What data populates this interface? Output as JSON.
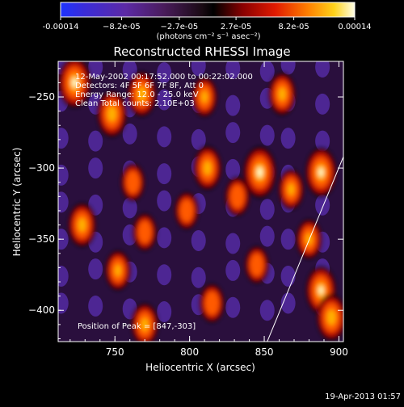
{
  "chart_data": {
    "type": "heatmap",
    "title": "Reconstructed RHESSI Image",
    "xlabel": "Heliocentric X (arcsec)",
    "ylabel": "Heliocentric Y (arcsec)",
    "xlim": [
      712,
      903
    ],
    "ylim": [
      -422,
      -225
    ],
    "xticks": [
      750,
      800,
      850,
      900
    ],
    "yticks": [
      -250,
      -300,
      -350,
      -400
    ],
    "colorbar": {
      "range": [
        -0.00014,
        0.00014
      ],
      "ticks": [
        {
          "value": -0.00014,
          "label": "-0.00014"
        },
        {
          "value": -8.2e-05,
          "label": "−8.2e-05"
        },
        {
          "value": -2.7e-05,
          "label": "−2.7e-05"
        },
        {
          "value": 2.7e-05,
          "label": "2.7e-05"
        },
        {
          "value": 8.2e-05,
          "label": "8.2e-05"
        },
        {
          "value": 0.00014,
          "label": "0.00014"
        }
      ],
      "unit_label": "(photons cm⁻² s⁻¹ asec⁻²)"
    },
    "info_lines": [
      "12-May-2002 00:17:52.000 to 00:22:02.000",
      "Detectors: 4F 5F 6F 7F 8F, Att 0",
      "Energy Range: 12.0 - 25.0 keV",
      "Clean    Total counts: 2.10E+03"
    ],
    "peak_label": "Position of Peak = [847,-303]",
    "peak": {
      "x": 847,
      "y": -303
    },
    "blobs": [
      {
        "x": 723,
        "y": -240,
        "w": 0.95
      },
      {
        "x": 728,
        "y": -340,
        "w": 0.7
      },
      {
        "x": 748,
        "y": -262,
        "w": 0.8
      },
      {
        "x": 752,
        "y": -372,
        "w": 0.55
      },
      {
        "x": 762,
        "y": -310,
        "w": 0.45
      },
      {
        "x": 768,
        "y": -248,
        "w": 0.75
      },
      {
        "x": 770,
        "y": -345,
        "w": 0.45
      },
      {
        "x": 770,
        "y": -410,
        "w": 0.65
      },
      {
        "x": 798,
        "y": -330,
        "w": 0.45
      },
      {
        "x": 810,
        "y": -250,
        "w": 0.55
      },
      {
        "x": 812,
        "y": -300,
        "w": 0.7
      },
      {
        "x": 815,
        "y": -395,
        "w": 0.5
      },
      {
        "x": 832,
        "y": -320,
        "w": 0.5
      },
      {
        "x": 847,
        "y": -303,
        "w": 1.0
      },
      {
        "x": 845,
        "y": -368,
        "w": 0.45
      },
      {
        "x": 862,
        "y": -248,
        "w": 0.65
      },
      {
        "x": 868,
        "y": -315,
        "w": 0.55
      },
      {
        "x": 880,
        "y": -350,
        "w": 0.55
      },
      {
        "x": 888,
        "y": -303,
        "w": 0.9
      },
      {
        "x": 888,
        "y": -386,
        "w": 0.85
      },
      {
        "x": 895,
        "y": -405,
        "w": 0.8
      }
    ],
    "timestamp": "19-Apr-2013 01:57"
  }
}
